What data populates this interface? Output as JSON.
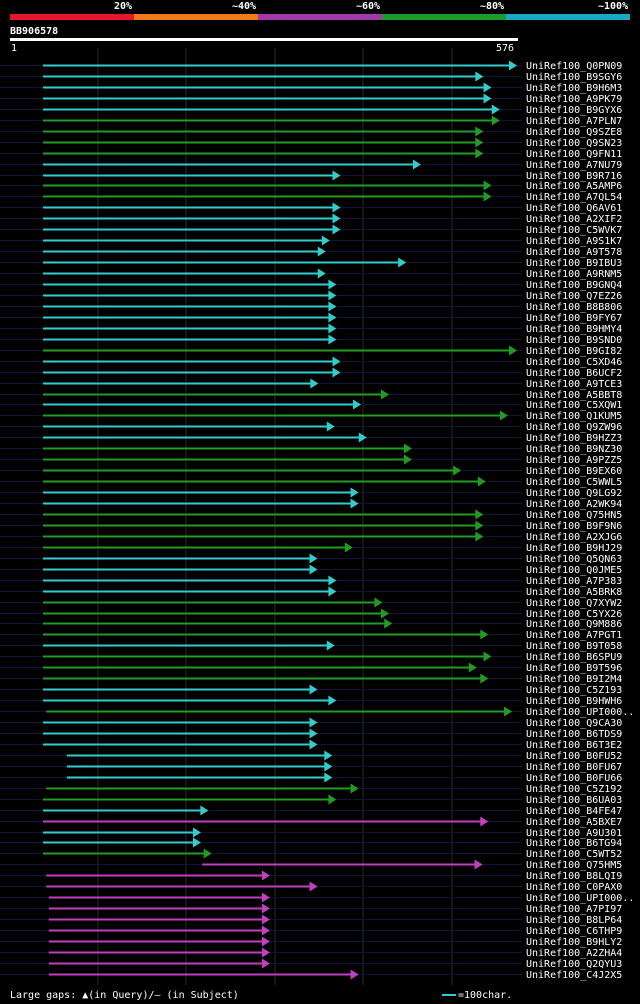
{
  "query": {
    "id": "BB906578",
    "start": "1",
    "end": "576",
    "length": 576
  },
  "scale": {
    "labels": [
      "20%",
      "~40%",
      "~60%",
      "~80%",
      "~100%"
    ],
    "colors": [
      "#e8162a",
      "#ee7a1c",
      "#a03aa6",
      "#1e9a2a",
      "#1aa9c4"
    ]
  },
  "hit_colors": {
    "c": "#3cc",
    "g": "#239a23",
    "m": "#c040c0"
  },
  "hits": [
    {
      "id": "UniRef100_Q0PN09",
      "s": 1,
      "e": 576,
      "c": "c"
    },
    {
      "id": "UniRef100_B9SGY6",
      "s": 1,
      "e": 535,
      "c": "c"
    },
    {
      "id": "UniRef100_B9H6M3",
      "s": 1,
      "e": 545,
      "c": "c"
    },
    {
      "id": "UniRef100_A9PK79",
      "s": 1,
      "e": 545,
      "c": "c"
    },
    {
      "id": "UniRef100_B9GYX6",
      "s": 1,
      "e": 555,
      "c": "c"
    },
    {
      "id": "UniRef100_A7PLN7",
      "s": 1,
      "e": 555,
      "c": "g"
    },
    {
      "id": "UniRef100_Q9SZE8",
      "s": 1,
      "e": 535,
      "c": "g"
    },
    {
      "id": "UniRef100_Q9SN23",
      "s": 1,
      "e": 535,
      "c": "g"
    },
    {
      "id": "UniRef100_Q9FN11",
      "s": 1,
      "e": 535,
      "c": "g"
    },
    {
      "id": "UniRef100_A7NU79",
      "s": 1,
      "e": 459,
      "c": "c"
    },
    {
      "id": "UniRef100_B9R716",
      "s": 1,
      "e": 361,
      "c": "c"
    },
    {
      "id": "UniRef100_A5AMP6",
      "s": 1,
      "e": 545,
      "c": "g"
    },
    {
      "id": "UniRef100_A7QL54",
      "s": 1,
      "e": 545,
      "c": "g"
    },
    {
      "id": "UniRef100_Q6AV61",
      "s": 1,
      "e": 361,
      "c": "c"
    },
    {
      "id": "UniRef100_A2XIF2",
      "s": 1,
      "e": 361,
      "c": "c"
    },
    {
      "id": "UniRef100_C5WVK7",
      "s": 1,
      "e": 361,
      "c": "c"
    },
    {
      "id": "UniRef100_A9S1K7",
      "s": 1,
      "e": 348,
      "c": "c"
    },
    {
      "id": "UniRef100_A9T578",
      "s": 1,
      "e": 343,
      "c": "c"
    },
    {
      "id": "UniRef100_B9IBU3",
      "s": 1,
      "e": 441,
      "c": "c"
    },
    {
      "id": "UniRef100_A9RNM5",
      "s": 1,
      "e": 343,
      "c": "c"
    },
    {
      "id": "UniRef100_B9GNQ4",
      "s": 1,
      "e": 356,
      "c": "c"
    },
    {
      "id": "UniRef100_Q7EZ26",
      "s": 1,
      "e": 356,
      "c": "c"
    },
    {
      "id": "UniRef100_B8B806",
      "s": 1,
      "e": 356,
      "c": "c"
    },
    {
      "id": "UniRef100_B9FY67",
      "s": 1,
      "e": 356,
      "c": "c"
    },
    {
      "id": "UniRef100_B9HMY4",
      "s": 1,
      "e": 356,
      "c": "c"
    },
    {
      "id": "UniRef100_B9SND0",
      "s": 1,
      "e": 356,
      "c": "c"
    },
    {
      "id": "UniRef100_B9GI82",
      "s": 1,
      "e": 576,
      "c": "g"
    },
    {
      "id": "UniRef100_C5XD46",
      "s": 1,
      "e": 361,
      "c": "c"
    },
    {
      "id": "UniRef100_B6UCF2",
      "s": 1,
      "e": 361,
      "c": "c"
    },
    {
      "id": "UniRef100_A9TCE3",
      "s": 1,
      "e": 334,
      "c": "c"
    },
    {
      "id": "UniRef100_A5BBT8",
      "s": 1,
      "e": 420,
      "c": "g"
    },
    {
      "id": "UniRef100_C5XQW1",
      "s": 1,
      "e": 386,
      "c": "c"
    },
    {
      "id": "UniRef100_Q1KUM5",
      "s": 1,
      "e": 565,
      "c": "g"
    },
    {
      "id": "UniRef100_Q9ZW96",
      "s": 1,
      "e": 354,
      "c": "c"
    },
    {
      "id": "UniRef100_B9HZZ3",
      "s": 1,
      "e": 393,
      "c": "c"
    },
    {
      "id": "UniRef100_B9NZ30",
      "s": 1,
      "e": 448,
      "c": "g"
    },
    {
      "id": "UniRef100_A9PZZ5",
      "s": 1,
      "e": 448,
      "c": "g"
    },
    {
      "id": "UniRef100_B9EX60",
      "s": 1,
      "e": 508,
      "c": "g"
    },
    {
      "id": "UniRef100_C5WWL5",
      "s": 1,
      "e": 538,
      "c": "g"
    },
    {
      "id": "UniRef100_Q9LG92",
      "s": 1,
      "e": 383,
      "c": "c"
    },
    {
      "id": "UniRef100_A2WK94",
      "s": 1,
      "e": 383,
      "c": "c"
    },
    {
      "id": "UniRef100_Q75HN5",
      "s": 1,
      "e": 535,
      "c": "g"
    },
    {
      "id": "UniRef100_B9F9N6",
      "s": 1,
      "e": 535,
      "c": "g"
    },
    {
      "id": "UniRef100_A2XJG6",
      "s": 1,
      "e": 535,
      "c": "g"
    },
    {
      "id": "UniRef100_B9HJ29",
      "s": 1,
      "e": 376,
      "c": "g"
    },
    {
      "id": "UniRef100_Q5QN63",
      "s": 1,
      "e": 333,
      "c": "c"
    },
    {
      "id": "UniRef100_Q0JME5",
      "s": 1,
      "e": 333,
      "c": "c"
    },
    {
      "id": "UniRef100_A7P383",
      "s": 1,
      "e": 356,
      "c": "c"
    },
    {
      "id": "UniRef100_A5BRK8",
      "s": 1,
      "e": 356,
      "c": "c"
    },
    {
      "id": "UniRef100_Q7XYW2",
      "s": 1,
      "e": 412,
      "c": "g"
    },
    {
      "id": "UniRef100_C5YX26",
      "s": 1,
      "e": 420,
      "c": "g"
    },
    {
      "id": "UniRef100_Q9M886",
      "s": 1,
      "e": 424,
      "c": "g"
    },
    {
      "id": "UniRef100_A7PGT1",
      "s": 1,
      "e": 541,
      "c": "g"
    },
    {
      "id": "UniRef100_B9T058",
      "s": 1,
      "e": 354,
      "c": "c"
    },
    {
      "id": "UniRef100_B6SPU9",
      "s": 1,
      "e": 545,
      "c": "g"
    },
    {
      "id": "UniRef100_B9T596",
      "s": 1,
      "e": 527,
      "c": "g"
    },
    {
      "id": "UniRef100_B9I2M4",
      "s": 1,
      "e": 541,
      "c": "g"
    },
    {
      "id": "UniRef100_C5Z193",
      "s": 1,
      "e": 333,
      "c": "c"
    },
    {
      "id": "UniRef100_B9HWH6",
      "s": 1,
      "e": 356,
      "c": "c"
    },
    {
      "id": "UniRef100_UPI000..",
      "s": 5,
      "e": 570,
      "c": "g"
    },
    {
      "id": "UniRef100_Q9CA30",
      "s": 1,
      "e": 333,
      "c": "c"
    },
    {
      "id": "UniRef100_B6TDS9",
      "s": 1,
      "e": 333,
      "c": "c"
    },
    {
      "id": "UniRef100_B6T3E2",
      "s": 1,
      "e": 333,
      "c": "c"
    },
    {
      "id": "UniRef100_B0FU52",
      "s": 30,
      "e": 351,
      "c": "c"
    },
    {
      "id": "UniRef100_B0FU67",
      "s": 30,
      "e": 351,
      "c": "c"
    },
    {
      "id": "UniRef100_B0FU66",
      "s": 30,
      "e": 351,
      "c": "c"
    },
    {
      "id": "UniRef100_C5Z192",
      "s": 5,
      "e": 383,
      "c": "g"
    },
    {
      "id": "UniRef100_B6UA03",
      "s": 1,
      "e": 356,
      "c": "g"
    },
    {
      "id": "UniRef100_B4FE47",
      "s": 1,
      "e": 200,
      "c": "c"
    },
    {
      "id": "UniRef100_A5BXE7",
      "s": 1,
      "e": 541,
      "c": "m"
    },
    {
      "id": "UniRef100_A9U301",
      "s": 1,
      "e": 191,
      "c": "c"
    },
    {
      "id": "UniRef100_B6TG94",
      "s": 1,
      "e": 191,
      "c": "c"
    },
    {
      "id": "UniRef100_C5WT52",
      "s": 1,
      "e": 204,
      "c": "g"
    },
    {
      "id": "UniRef100_Q75HM5",
      "s": 195,
      "e": 534,
      "c": "m"
    },
    {
      "id": "UniRef100_B8LQI9",
      "s": 5,
      "e": 275,
      "c": "m"
    },
    {
      "id": "UniRef100_C0PAX0",
      "s": 5,
      "e": 333,
      "c": "m"
    },
    {
      "id": "UniRef100_UPI000..",
      "s": 8,
      "e": 275,
      "c": "m"
    },
    {
      "id": "UniRef100_A7PI97",
      "s": 8,
      "e": 275,
      "c": "m"
    },
    {
      "id": "UniRef100_B8LP64",
      "s": 8,
      "e": 275,
      "c": "m"
    },
    {
      "id": "UniRef100_C6THP9",
      "s": 8,
      "e": 275,
      "c": "m"
    },
    {
      "id": "UniRef100_B9HLY2",
      "s": 8,
      "e": 275,
      "c": "m"
    },
    {
      "id": "UniRef100_A2ZHA4",
      "s": 8,
      "e": 275,
      "c": "m"
    },
    {
      "id": "UniRef100_Q2QYU3",
      "s": 8,
      "e": 275,
      "c": "m"
    },
    {
      "id": "UniRef100_C4J2X5",
      "s": 8,
      "e": 383,
      "c": "m"
    }
  ],
  "footer": {
    "legend_left": "Large gaps: ▲(in Query)/– (in Subject)",
    "legend_right": "=100char."
  }
}
